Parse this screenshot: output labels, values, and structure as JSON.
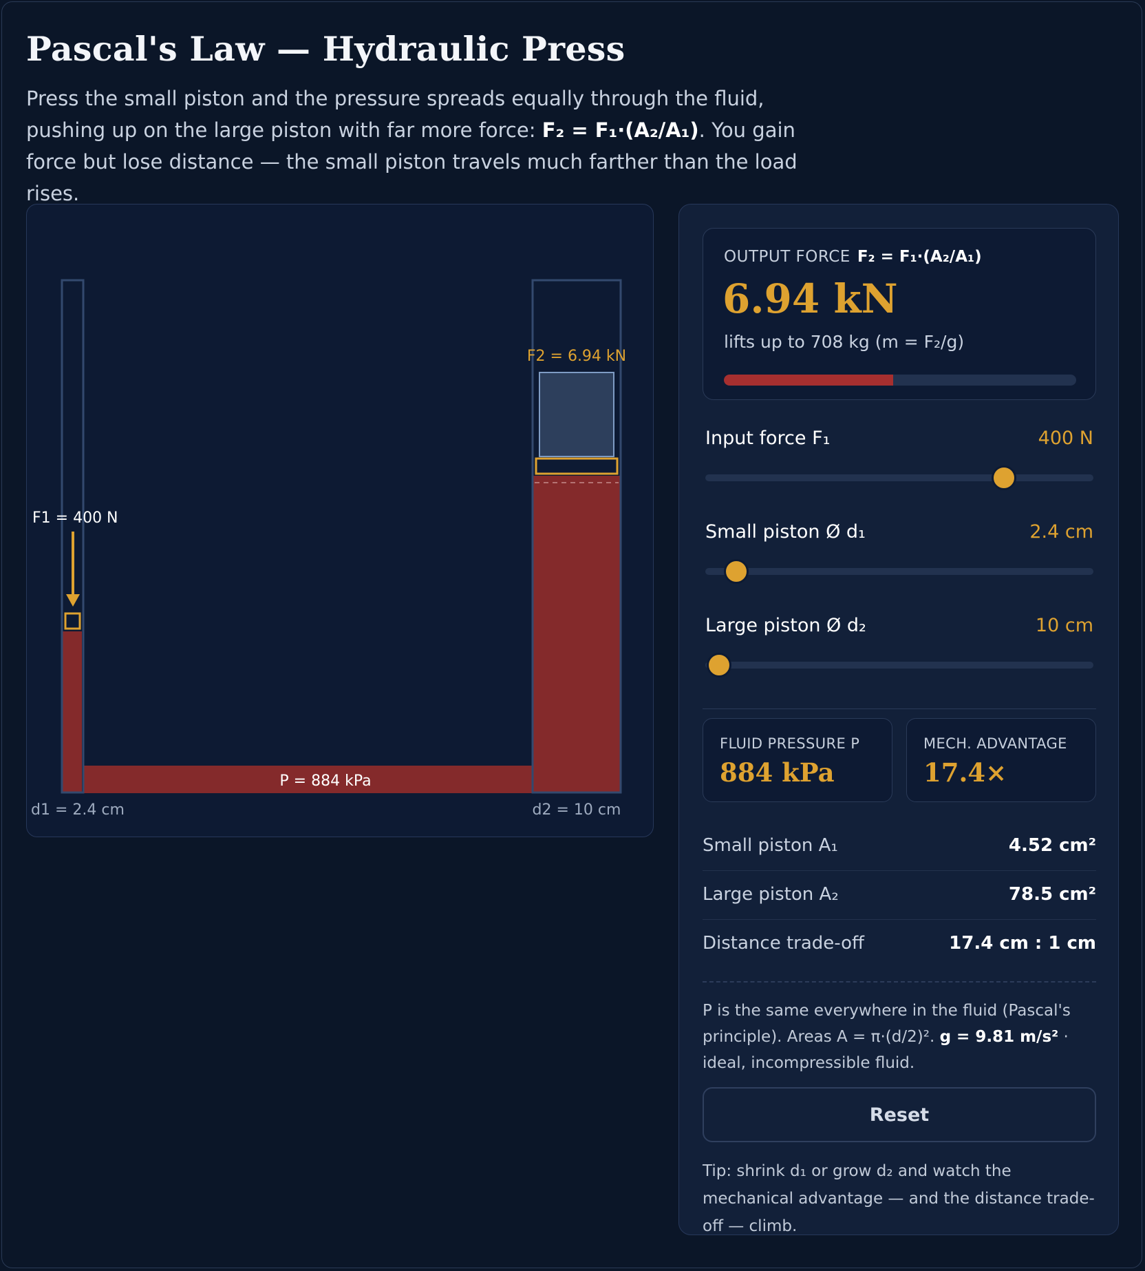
{
  "title": "Pascal's Law — Hydraulic Press",
  "intro": {
    "part1": "Press the small piston and the pressure spreads equally through the fluid, pushing up on the large piston with far more force: ",
    "formula": "F₂ = F₁·(A₂/A₁)",
    "part2": ". You gain force but lose distance — the small piston travels much farther than the load rises."
  },
  "diagram": {
    "f1_label": "F1 = 400 N",
    "f2_label": "F2 = 6.94 kN",
    "pressure_label": "P = 884 kPa",
    "d1_label": "d1 = 2.4 cm",
    "d2_label": "d2 = 10 cm",
    "colors": {
      "fluid": "#842a2b",
      "accent": "#dea230",
      "tube": "#33496e",
      "load": "#2d3f5c"
    }
  },
  "output": {
    "label": "OUTPUT FORCE",
    "formula": "F₂ = F₁·(A₂/A₁)",
    "value": "6.94 kN",
    "lifts": "lifts up to 708 kg  (m = F₂/g)",
    "bar_fraction": 0.48
  },
  "sliders": [
    {
      "label": "Input force F₁",
      "value": "400 N",
      "fraction": 0.77
    },
    {
      "label": "Small piston Ø d₁",
      "value": "2.4 cm",
      "fraction": 0.08
    },
    {
      "label": "Large piston Ø d₂",
      "value": "10 cm",
      "fraction": 0.035
    }
  ],
  "stats": {
    "pressure_label": "FLUID PRESSURE P",
    "pressure_value": "884 kPa",
    "advantage_label": "MECH. ADVANTAGE",
    "advantage_value": "17.4×"
  },
  "details": [
    {
      "label": "Small piston A₁",
      "value": "4.52 cm²"
    },
    {
      "label": "Large piston A₂",
      "value": "78.5 cm²"
    },
    {
      "label": "Distance trade-off",
      "value": "17.4 cm : 1 cm"
    }
  ],
  "note": {
    "part1": "P is the same everywhere in the fluid (Pascal's principle). Areas A = π·(d/2)². ",
    "bold": "g = 9.81 m/s²",
    "part2": " · ideal, incompressible fluid."
  },
  "reset_label": "Reset",
  "tip": "Tip: shrink d₁ or grow d₂ and watch the mechanical advantage — and the distance trade-off — climb."
}
